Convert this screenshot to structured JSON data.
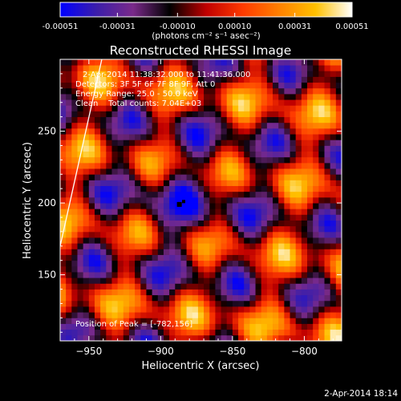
{
  "colorbar": {
    "tick_labels": [
      "-0.00051",
      "-0.00031",
      "-0.00010",
      "0.00010",
      "0.00031",
      "0.00051"
    ],
    "tick_values": [
      -0.00051,
      -0.00031,
      -0.0001,
      0.0001,
      0.00031,
      0.00051
    ],
    "range": [
      -0.00051,
      0.00051
    ],
    "unit_label": "(photons cm⁻² s⁻¹ asec⁻²)",
    "colors": [
      "#0000ff",
      "#3c1eaa",
      "#7a2a8a",
      "#000000",
      "#c00000",
      "#ff3a00",
      "#ff8000",
      "#ffc000",
      "#ffffff"
    ]
  },
  "chart_data": {
    "type": "heatmap",
    "title": "Reconstructed RHESSI Image",
    "xlabel": "Heliocentric X (arcsec)",
    "ylabel": "Heliocentric Y (arcsec)",
    "xlim": [
      -970,
      -774
    ],
    "ylim": [
      104,
      300
    ],
    "x_ticks": [
      -950,
      -900,
      -850,
      -800
    ],
    "x_tick_labels": [
      "−950",
      "−900",
      "−850",
      "−800"
    ],
    "y_ticks": [
      150,
      200,
      250
    ],
    "y_tick_labels": [
      "150",
      "200",
      "250"
    ],
    "info_lines": [
      "2-Apr-2014 11:38:32.000 to 11:41:36.000",
      "Detectors: 3F 5F 6F 7F 8F 9F, Att 0",
      "Energy Range: 25.0 - 50.0 keV",
      "Clean    Total counts: 7.04E+03"
    ],
    "peak_text": "Position of Peak = [-782,156]",
    "peak_position": [
      -782,
      156
    ],
    "limb_line": [
      [
        -970,
        170
      ],
      [
        -941,
        300
      ]
    ]
  },
  "footer": {
    "timestamp": "2-Apr-2014 18:14"
  }
}
